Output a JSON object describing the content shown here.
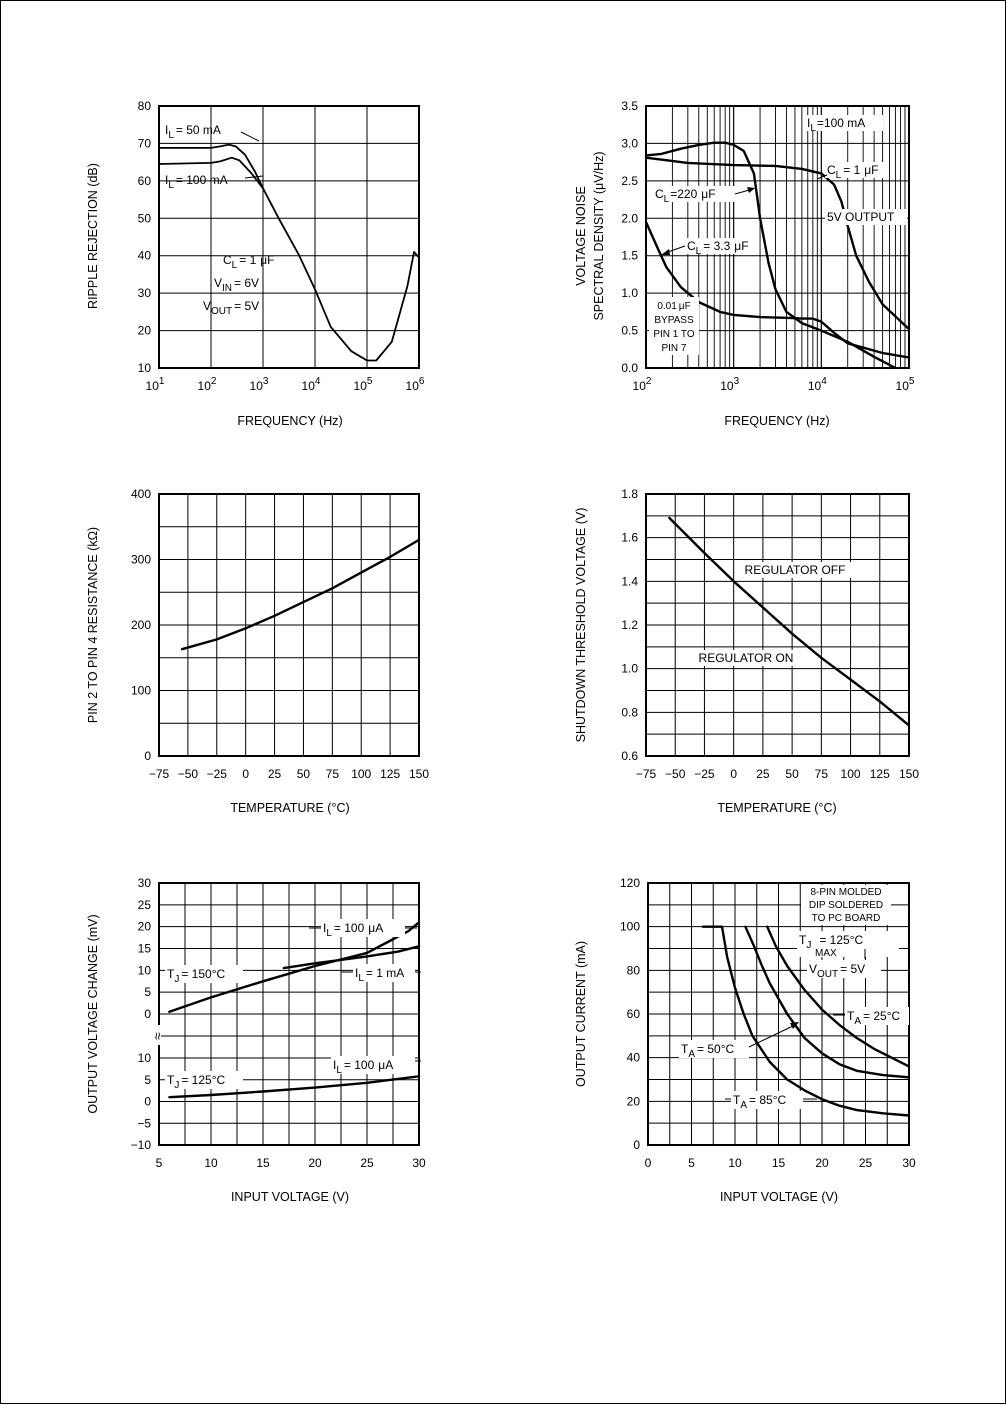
{
  "chart_data": [
    {
      "type": "line",
      "xscale": "log",
      "xlabel": "FREQUENCY (Hz)",
      "ylabel": "RIPPLE REJECTION (dB)",
      "xlim": [
        10,
        1000000
      ],
      "ylim": [
        10,
        80
      ],
      "xticks": [
        "10^1",
        "10^2",
        "10^3",
        "10^4",
        "10^5",
        "10^6"
      ],
      "yticks": [
        "80",
        "70",
        "60",
        "50",
        "40",
        "30",
        "20",
        "10"
      ],
      "grid": true,
      "series": [
        {
          "name": "I_L = 50 mA",
          "points": [
            [
              10,
              68.8
            ],
            [
              100,
              68.8
            ],
            [
              150,
              69.2
            ],
            [
              220,
              69.7
            ],
            [
              300,
              69.2
            ],
            [
              450,
              67
            ],
            [
              700,
              62.5
            ],
            [
              1000,
              58
            ],
            [
              2000,
              50
            ],
            [
              5000,
              40
            ],
            [
              10000,
              31
            ],
            [
              20000,
              21
            ],
            [
              50000,
              14.5
            ],
            [
              100000,
              12
            ],
            [
              150000,
              12
            ],
            [
              300000,
              17
            ],
            [
              600000,
              32
            ],
            [
              800000,
              41
            ],
            [
              1000000,
              39.5
            ]
          ]
        },
        {
          "name": "I_L = 100 mA",
          "points": [
            [
              10,
              64.5
            ],
            [
              100,
              64.8
            ],
            [
              150,
              65.2
            ],
            [
              250,
              66.2
            ],
            [
              350,
              65.5
            ],
            [
              600,
              62
            ],
            [
              1000,
              58
            ]
          ]
        }
      ],
      "annotations": [
        {
          "text": "I_L = 50 mA"
        },
        {
          "text": "I_L = 100 mA"
        },
        {
          "text": "C_L = 1 μF"
        },
        {
          "text": "V_IN = 6V"
        },
        {
          "text": "V_OUT = 5V"
        }
      ]
    },
    {
      "type": "line",
      "xscale": "log",
      "xlabel": "FREQUENCY (Hz)",
      "ylabel": "VOLTAGE NOISE SPECTRAL DENSITY (μV/√Hz)",
      "xlim": [
        100,
        100000
      ],
      "ylim": [
        0,
        3.5
      ],
      "xticks": [
        "10^2",
        "10^3",
        "10^4",
        "10^5"
      ],
      "yticks": [
        "3.5",
        "3.0",
        "2.5",
        "2.0",
        "1.5",
        "1.0",
        "0.5",
        "0.0"
      ],
      "grid": true,
      "series": [
        {
          "name": "C_L = 220 μF",
          "points": [
            [
              100,
              2.84
            ],
            [
              150,
              2.86
            ],
            [
              250,
              2.93
            ],
            [
              400,
              2.98
            ],
            [
              600,
              3.01
            ],
            [
              800,
              3.01
            ],
            [
              1000,
              2.98
            ],
            [
              1300,
              2.9
            ],
            [
              1700,
              2.6
            ],
            [
              2000,
              2.0
            ],
            [
              2500,
              1.4
            ],
            [
              3000,
              1.05
            ],
            [
              4000,
              0.75
            ],
            [
              6000,
              0.6
            ],
            [
              10000,
              0.5
            ],
            [
              20000,
              0.35
            ],
            [
              40000,
              0.15
            ],
            [
              70000,
              0.0
            ]
          ]
        },
        {
          "name": "5V OUTPUT C_L = 1 μF",
          "points": [
            [
              100,
              2.81
            ],
            [
              300,
              2.74
            ],
            [
              1000,
              2.71
            ],
            [
              3000,
              2.7
            ],
            [
              6000,
              2.66
            ],
            [
              10000,
              2.6
            ],
            [
              14000,
              2.45
            ],
            [
              17000,
              2.22
            ],
            [
              20000,
              1.9
            ],
            [
              25000,
              1.5
            ],
            [
              35000,
              1.15
            ],
            [
              50000,
              0.85
            ],
            [
              100000,
              0.52
            ]
          ]
        },
        {
          "name": "C_L = 3.3 μF",
          "points": [
            [
              100,
              1.95
            ],
            [
              130,
              1.65
            ],
            [
              170,
              1.35
            ],
            [
              250,
              1.08
            ],
            [
              400,
              0.88
            ],
            [
              700,
              0.75
            ],
            [
              1000,
              0.71
            ],
            [
              2000,
              0.68
            ],
            [
              4000,
              0.67
            ],
            [
              6000,
              0.66
            ],
            [
              8000,
              0.66
            ],
            [
              10000,
              0.62
            ],
            [
              14000,
              0.47
            ],
            [
              20000,
              0.33
            ],
            [
              50000,
              0.2
            ],
            [
              100000,
              0.14
            ]
          ]
        }
      ],
      "annotations": [
        {
          "text": "I_L = 100 mA"
        },
        {
          "text": "C_L = 1 μF"
        },
        {
          "text": "C_L = 220 μF"
        },
        {
          "text": "5V OUTPUT"
        },
        {
          "text": "C_L = 3.3 μF"
        },
        {
          "text": "0.01 μF BYPASS PIN 1 TO PIN 7"
        }
      ]
    },
    {
      "type": "line",
      "xlabel": "TEMPERATURE (°C)",
      "ylabel": "PIN 2 TO PIN 4 RESISTANCE (kΩ)",
      "xlim": [
        -75,
        150
      ],
      "ylim": [
        0,
        400
      ],
      "xticks": [
        "−75",
        "−50",
        "−25",
        "0",
        "25",
        "50",
        "75",
        "100",
        "125",
        "150"
      ],
      "yticks": [
        "400",
        "300",
        "200",
        "100",
        "0"
      ],
      "grid": true,
      "series": [
        {
          "points": [
            [
              -55,
              163
            ],
            [
              -25,
              178
            ],
            [
              0,
              195
            ],
            [
              25,
              214
            ],
            [
              50,
              235
            ],
            [
              75,
              256
            ],
            [
              100,
              280
            ],
            [
              125,
              304
            ],
            [
              150,
              330
            ]
          ]
        }
      ]
    },
    {
      "type": "line",
      "xlabel": "TEMPERATURE (°C)",
      "ylabel": "SHUTDOWN THRESHOLD VOLTAGE (V)",
      "xlim": [
        -75,
        150
      ],
      "ylim": [
        0.6,
        1.8
      ],
      "xticks": [
        "−75",
        "−50",
        "−25",
        "0",
        "25",
        "50",
        "75",
        "100",
        "125",
        "150"
      ],
      "yticks": [
        "1.8",
        "1.6",
        "1.4",
        "1.2",
        "1.0",
        "0.8",
        "0.6"
      ],
      "grid": true,
      "series": [
        {
          "points": [
            [
              -55,
              1.69
            ],
            [
              -25,
              1.53
            ],
            [
              0,
              1.4
            ],
            [
              25,
              1.28
            ],
            [
              50,
              1.16
            ],
            [
              75,
              1.05
            ],
            [
              100,
              0.95
            ],
            [
              125,
              0.85
            ],
            [
              150,
              0.74
            ]
          ]
        }
      ],
      "annotations": [
        {
          "text": "REGULATOR OFF"
        },
        {
          "text": "REGULATOR ON"
        }
      ]
    },
    {
      "type": "line",
      "xlabel": "INPUT VOLTAGE (V)",
      "ylabel": "OUTPUT VOLTAGE CHANGE (mV)",
      "xlim": [
        5,
        30
      ],
      "xticks": [
        "5",
        "10",
        "15",
        "20",
        "25",
        "30"
      ],
      "yticks_upper": [
        "30",
        "25",
        "20",
        "15",
        "10",
        "5",
        "0"
      ],
      "yticks_lower": [
        "10",
        "5",
        "0",
        "−5",
        "−10"
      ],
      "grid": true,
      "series": [
        {
          "name": "T_J = 150°C I_L = 100 μA",
          "section": "upper",
          "points": [
            [
              6,
              0.5
            ],
            [
              10,
              3.8
            ],
            [
              15,
              7.5
            ],
            [
              20,
              11
            ],
            [
              25,
              14
            ],
            [
              27,
              16.5
            ],
            [
              29,
              19
            ],
            [
              30,
              21
            ]
          ]
        },
        {
          "name": "T_J = 150°C I_L = 1 mA",
          "section": "upper",
          "points": [
            [
              17,
              10.5
            ],
            [
              20,
              11.6
            ],
            [
              25,
              13.2
            ],
            [
              28,
              14.3
            ],
            [
              30,
              15.5
            ]
          ]
        },
        {
          "name": "T_J = 125°C I_L = 100 μA",
          "section": "lower",
          "points": [
            [
              6,
              1
            ],
            [
              10,
              1.5
            ],
            [
              15,
              2.3
            ],
            [
              20,
              3.2
            ],
            [
              25,
              4.3
            ],
            [
              30,
              5.8
            ]
          ]
        }
      ],
      "annotations": [
        {
          "text": "T_J = 150°C"
        },
        {
          "text": "I_L = 100 μA"
        },
        {
          "text": "I_L = 1 mA"
        },
        {
          "text": "T_J = 125°C"
        },
        {
          "text": "I_L = 100 μA"
        }
      ]
    },
    {
      "type": "line",
      "xlabel": "INPUT VOLTAGE (V)",
      "ylabel": "OUTPUT CURRENT (mA)",
      "xlim": [
        0,
        30
      ],
      "ylim": [
        0,
        120
      ],
      "xticks": [
        "0",
        "5",
        "10",
        "15",
        "20",
        "25",
        "30"
      ],
      "yticks": [
        "120",
        "100",
        "80",
        "60",
        "40",
        "20",
        "0"
      ],
      "grid": true,
      "series": [
        {
          "name": "T_A = 85°C",
          "points": [
            [
              6.3,
              100
            ],
            [
              8.5,
              100
            ],
            [
              9.1,
              86
            ],
            [
              10,
              72
            ],
            [
              11,
              60
            ],
            [
              12,
              50
            ],
            [
              14,
              38
            ],
            [
              16,
              30
            ],
            [
              18,
              25
            ],
            [
              20,
              21
            ],
            [
              22,
              18
            ],
            [
              24,
              16
            ],
            [
              27,
              14.5
            ],
            [
              30,
              13.5
            ]
          ]
        },
        {
          "name": "T_A = 50°C",
          "points": [
            [
              11.2,
              100
            ],
            [
              12.2,
              91
            ],
            [
              13,
              83
            ],
            [
              14,
              74
            ],
            [
              16,
              60
            ],
            [
              18,
              49
            ],
            [
              20,
              42
            ],
            [
              22,
              37
            ],
            [
              24,
              34
            ],
            [
              27,
              32
            ],
            [
              30,
              31
            ]
          ]
        },
        {
          "name": "T_A = 25°C",
          "points": [
            [
              13.7,
              100
            ],
            [
              14.7,
              91
            ],
            [
              16,
              82
            ],
            [
              18,
              71
            ],
            [
              20,
              62
            ],
            [
              22,
              55
            ],
            [
              24,
              49
            ],
            [
              26,
              44
            ],
            [
              28,
              40
            ],
            [
              30,
              36
            ]
          ]
        }
      ],
      "annotations": [
        {
          "text": "8-PIN MOLDED"
        },
        {
          "text": "DIP SOLDERED"
        },
        {
          "text": "TO PC BOARD"
        },
        {
          "text": "T_J MAX = 125°C"
        },
        {
          "text": "V_OUT = 5V"
        },
        {
          "text": "T_A = 25°C"
        },
        {
          "text": "T_A = 50°C"
        },
        {
          "text": "T_A = 85°C"
        }
      ]
    }
  ],
  "labels": {
    "c1": {
      "x": "FREQUENCY (Hz)",
      "y": "RIPPLE REJECTION (dB)",
      "y_ticks": [
        "80",
        "70",
        "60",
        "50",
        "40",
        "30",
        "20",
        "10"
      ],
      "x_base": "10",
      "x_exp": [
        "1",
        "2",
        "3",
        "4",
        "5",
        "6"
      ],
      "il50": "= 50 mA",
      "il100": "= 100 mA",
      "cl": "= 1",
      "mu": "μ",
      "f": "F",
      "vin": "= 6V",
      "vout": "= 5V"
    },
    "c2": {
      "x": "FREQUENCY (Hz)",
      "y1": "VOLTAGE NOISE",
      "y2": "SPECTRAL DENSITY (",
      "y2b": "V/",
      "y2c": "Hz)",
      "y_ticks": [
        "3.5",
        "3.0",
        "2.5",
        "2.0",
        "1.5",
        "1.0",
        "0.5",
        "0.0"
      ],
      "x_base": "10",
      "x_exp": [
        "2",
        "3",
        "4",
        "5"
      ],
      "il": "=100 mA",
      "cl1": "= 1",
      "cl220": "=220",
      "out5v": "5V OUTPUT",
      "cl33": "= 3.3",
      "byp1": "0.01",
      "byp2": "BYPASS",
      "byp3": "PIN 1 TO",
      "byp4": "PIN 7"
    },
    "c3": {
      "x": "TEMPERATURE (°C)",
      "y": "PIN 2 TO PIN 4 RESISTANCE (kΩ)",
      "y_ticks": [
        "400",
        "300",
        "200",
        "100",
        "0"
      ],
      "x_ticks": [
        "−75",
        "−50",
        "−25",
        "0",
        "25",
        "50",
        "75",
        "100",
        "125",
        "150"
      ]
    },
    "c4": {
      "x": "TEMPERATURE (°C)",
      "y": "SHUTDOWN THRESHOLD VOLTAGE (V)",
      "y_ticks": [
        "1.8",
        "1.6",
        "1.4",
        "1.2",
        "1.0",
        "0.8",
        "0.6"
      ],
      "x_ticks": [
        "−75",
        "−50",
        "−25",
        "0",
        "25",
        "50",
        "75",
        "100",
        "125",
        "150"
      ],
      "off": "REGULATOR OFF",
      "on": "REGULATOR ON"
    },
    "c5": {
      "x": "INPUT VOLTAGE (V)",
      "y": "OUTPUT VOLTAGE CHANGE (mV)",
      "y_ticks_upper": [
        "30",
        "25",
        "20",
        "15",
        "10",
        "5",
        "0"
      ],
      "y_ticks_lower": [
        "10",
        "5",
        "0",
        "−5",
        "−10"
      ],
      "x_ticks": [
        "5",
        "10",
        "15",
        "20",
        "25",
        "30"
      ],
      "tj150": "= 150°C",
      "tj125": "= 125°C",
      "il100a": "= 100",
      "il1": "= 1 mA",
      "il100b": "= 100",
      "break": "≈"
    },
    "c6": {
      "x": "INPUT VOLTAGE (V)",
      "y": "OUTPUT CURRENT (mA)",
      "y_ticks": [
        "120",
        "100",
        "80",
        "60",
        "40",
        "20",
        "0"
      ],
      "x_ticks": [
        "0",
        "5",
        "10",
        "15",
        "20",
        "25",
        "30"
      ],
      "box1": "8-PIN MOLDED",
      "box2": "DIP SOLDERED",
      "box3": "TO PC BOARD",
      "tj": "= 125°C",
      "vout": "= 5V",
      "ta25": "= 25°C",
      "ta50": "= 50°C",
      "ta85": "= 85°C"
    },
    "sub": {
      "L": "L",
      "IN": "IN",
      "OUT": "OUT",
      "J": "J",
      "A": "A",
      "MAX": "MAX",
      "I": "I",
      "C": "C",
      "V": "V",
      "T": "T",
      "A2": "A",
      "A3": "A"
    }
  }
}
